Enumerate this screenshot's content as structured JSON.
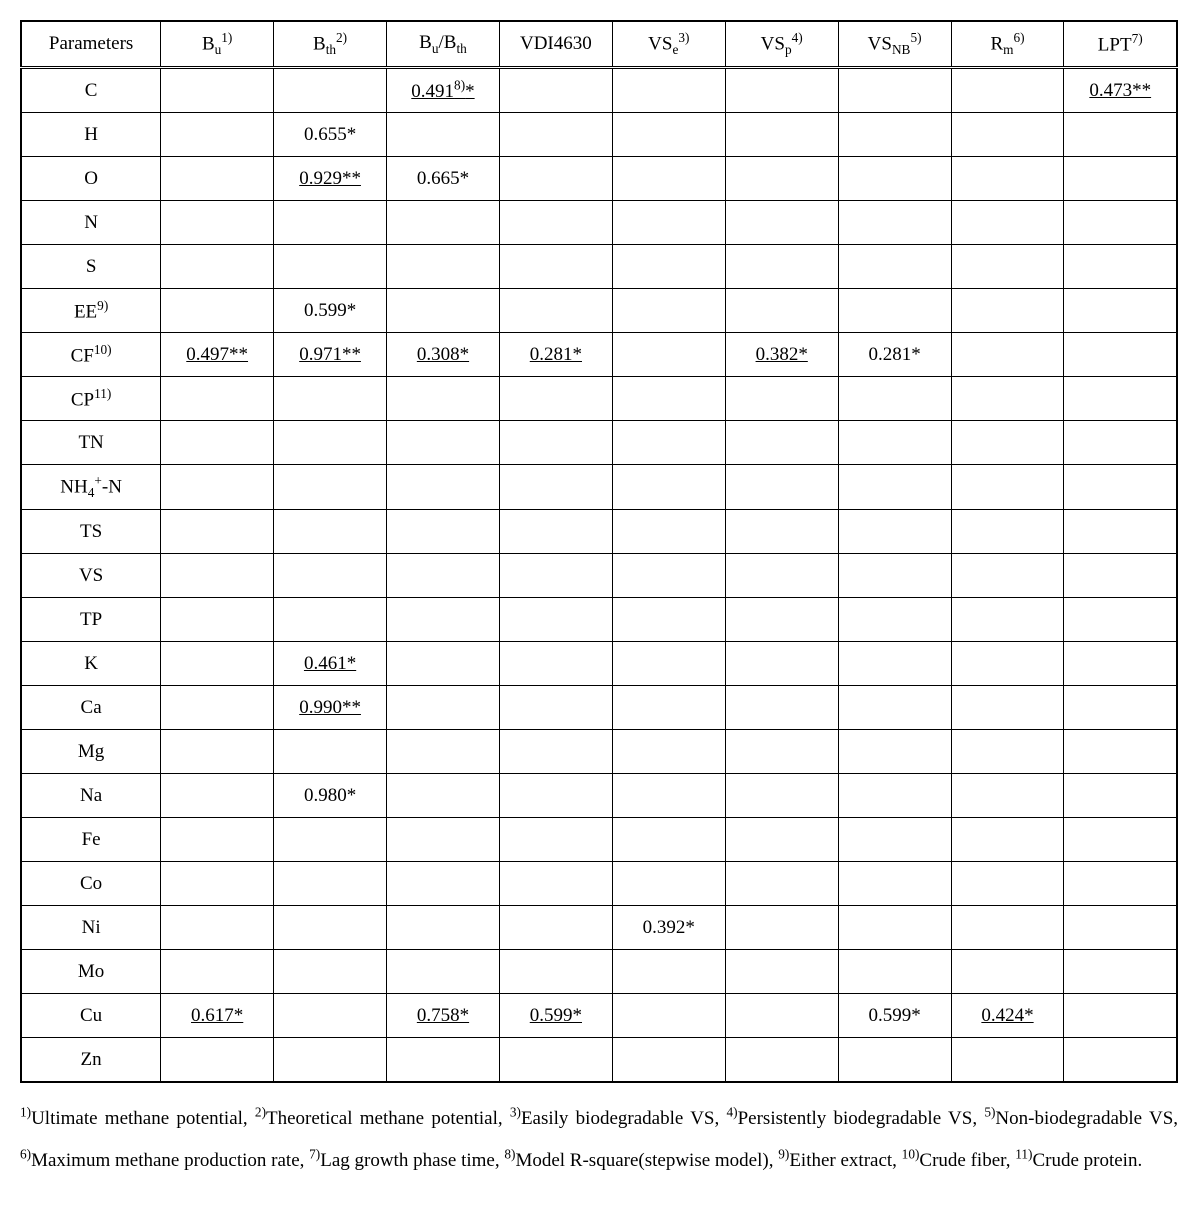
{
  "columns": [
    {
      "label": "Parameters"
    },
    {
      "pre": "B",
      "sub": "u",
      "sup": "1)"
    },
    {
      "pre": "B",
      "sub": "th",
      "sup": "2)"
    },
    {
      "pre": "B",
      "sub": "u",
      "mid": "/B",
      "sub2": "th"
    },
    {
      "label": "VDI4630"
    },
    {
      "pre": "VS",
      "sub": "e",
      "sup": "3)"
    },
    {
      "pre": "VS",
      "sub": "p",
      "sup": "4)"
    },
    {
      "pre": "VS",
      "sub": "NB",
      "sup": "5)"
    },
    {
      "pre": "R",
      "sub": "m",
      "sup": "6)"
    },
    {
      "pre": "LPT",
      "sup": "7)"
    }
  ],
  "rowLabels": [
    {
      "text": "C"
    },
    {
      "text": "H"
    },
    {
      "text": "O"
    },
    {
      "text": "N"
    },
    {
      "text": "S"
    },
    {
      "pre": "EE",
      "sup": "9)"
    },
    {
      "pre": "CF",
      "sup": "10)"
    },
    {
      "pre": "CP",
      "sup": "11)"
    },
    {
      "text": "TN"
    },
    {
      "pre": "NH",
      "sub": "4",
      "sup": "+",
      "post": "-N"
    },
    {
      "text": "TS"
    },
    {
      "text": "VS"
    },
    {
      "text": "TP"
    },
    {
      "text": "K"
    },
    {
      "text": "Ca"
    },
    {
      "text": "Mg"
    },
    {
      "text": "Na"
    },
    {
      "text": "Fe"
    },
    {
      "text": "Co"
    },
    {
      "text": "Ni"
    },
    {
      "text": "Mo"
    },
    {
      "text": "Cu"
    },
    {
      "text": "Zn"
    }
  ],
  "rows": [
    [
      "",
      "",
      {
        "pre": "0.491",
        "sup": "8)",
        "post": "*",
        "ul": true
      },
      "",
      "",
      "",
      "",
      "",
      {
        "text": "0.473**",
        "ul": true
      }
    ],
    [
      "",
      "0.655*",
      "",
      "",
      "",
      "",
      "",
      "",
      ""
    ],
    [
      "",
      {
        "text": "0.929**",
        "ul": true
      },
      "0.665*",
      "",
      "",
      "",
      "",
      "",
      ""
    ],
    [
      "",
      "",
      "",
      "",
      "",
      "",
      "",
      "",
      ""
    ],
    [
      "",
      "",
      "",
      "",
      "",
      "",
      "",
      "",
      ""
    ],
    [
      "",
      "0.599*",
      "",
      "",
      "",
      "",
      "",
      "",
      ""
    ],
    [
      {
        "text": "0.497**",
        "ul": true
      },
      {
        "text": "0.971**",
        "ul": true
      },
      {
        "text": "0.308*",
        "ul": true
      },
      {
        "text": "0.281*",
        "ul": true
      },
      "",
      {
        "text": "0.382*",
        "ul": true
      },
      "0.281*",
      "",
      ""
    ],
    [
      "",
      "",
      "",
      "",
      "",
      "",
      "",
      "",
      ""
    ],
    [
      "",
      "",
      "",
      "",
      "",
      "",
      "",
      "",
      ""
    ],
    [
      "",
      "",
      "",
      "",
      "",
      "",
      "",
      "",
      ""
    ],
    [
      "",
      "",
      "",
      "",
      "",
      "",
      "",
      "",
      ""
    ],
    [
      "",
      "",
      "",
      "",
      "",
      "",
      "",
      "",
      ""
    ],
    [
      "",
      "",
      "",
      "",
      "",
      "",
      "",
      "",
      ""
    ],
    [
      "",
      {
        "text": "0.461*",
        "ul": true
      },
      "",
      "",
      "",
      "",
      "",
      "",
      ""
    ],
    [
      "",
      {
        "text": "0.990**",
        "ul": true
      },
      "",
      "",
      "",
      "",
      "",
      "",
      ""
    ],
    [
      "",
      "",
      "",
      "",
      "",
      "",
      "",
      "",
      ""
    ],
    [
      "",
      "0.980*",
      "",
      "",
      "",
      "",
      "",
      "",
      ""
    ],
    [
      "",
      "",
      "",
      "",
      "",
      "",
      "",
      "",
      ""
    ],
    [
      "",
      "",
      "",
      "",
      "",
      "",
      "",
      "",
      ""
    ],
    [
      "",
      "",
      "",
      "",
      "0.392*",
      "",
      "",
      "",
      ""
    ],
    [
      "",
      "",
      "",
      "",
      "",
      "",
      "",
      "",
      ""
    ],
    [
      {
        "text": "0.617*",
        "ul": true
      },
      "",
      {
        "text": "0.758*",
        "ul": true
      },
      {
        "text": "0.599*",
        "ul": true
      },
      "",
      "",
      "0.599*",
      {
        "text": "0.424*",
        "ul": true
      },
      ""
    ],
    [
      "",
      "",
      "",
      "",
      "",
      "",
      "",
      "",
      ""
    ]
  ],
  "footnotes": [
    {
      "n": "1)",
      "text": "Ultimate methane potential"
    },
    {
      "n": "2)",
      "text": "Theoretical methane potential"
    },
    {
      "n": "3)",
      "text": "Easily biodegradable VS"
    },
    {
      "n": "4)",
      "text": "Persistently biodegradable VS"
    },
    {
      "n": "5)",
      "text": "Non-biodegradable VS"
    },
    {
      "n": "6)",
      "text": "Maximum methane production rate"
    },
    {
      "n": "7)",
      "text": "Lag growth phase time"
    },
    {
      "n": "8)",
      "text": "Model R-square(stepwise model)"
    },
    {
      "n": "9)",
      "text": "Either extract"
    },
    {
      "n": "10)",
      "text": "Crude fiber"
    },
    {
      "n": "11)",
      "text": "Crude protein"
    }
  ]
}
